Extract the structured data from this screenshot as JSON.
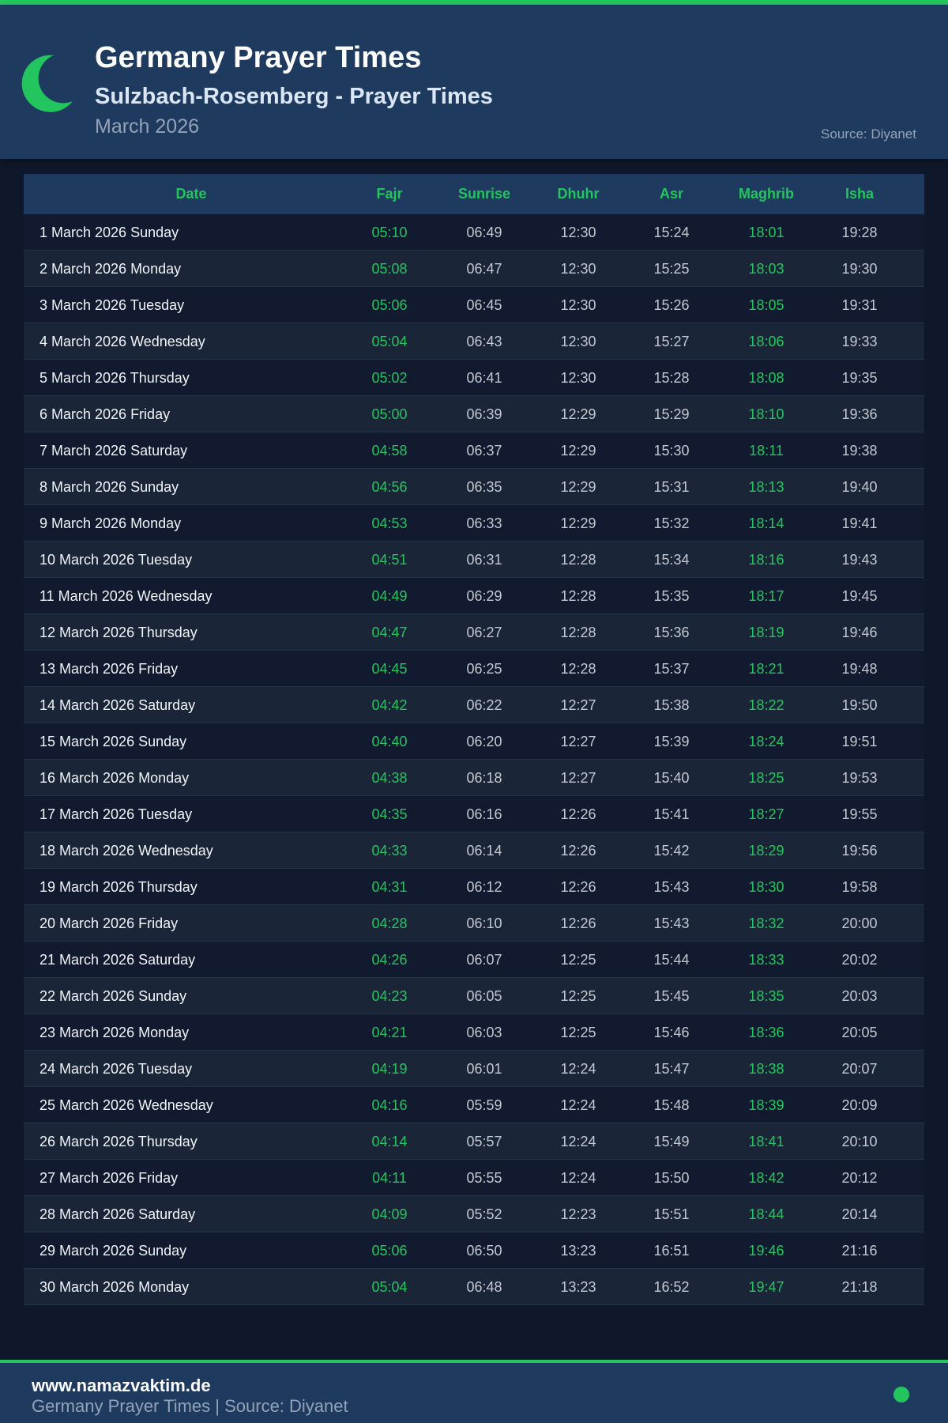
{
  "header": {
    "title": "Germany Prayer Times",
    "subtitle": "Sulzbach-Rosemberg - Prayer Times",
    "month": "March 2026",
    "source": "Source: Diyanet",
    "icon": "crescent-moon-icon"
  },
  "colors": {
    "accent": "#22c55e",
    "header_bg": "#1e3a5f",
    "page_bg": "#0f172a"
  },
  "table": {
    "columns": [
      "Date",
      "Fajr",
      "Sunrise",
      "Dhuhr",
      "Asr",
      "Maghrib",
      "Isha"
    ],
    "rows": [
      [
        "1 March 2026 Sunday",
        "05:10",
        "06:49",
        "12:30",
        "15:24",
        "18:01",
        "19:28"
      ],
      [
        "2 March 2026 Monday",
        "05:08",
        "06:47",
        "12:30",
        "15:25",
        "18:03",
        "19:30"
      ],
      [
        "3 March 2026 Tuesday",
        "05:06",
        "06:45",
        "12:30",
        "15:26",
        "18:05",
        "19:31"
      ],
      [
        "4 March 2026 Wednesday",
        "05:04",
        "06:43",
        "12:30",
        "15:27",
        "18:06",
        "19:33"
      ],
      [
        "5 March 2026 Thursday",
        "05:02",
        "06:41",
        "12:30",
        "15:28",
        "18:08",
        "19:35"
      ],
      [
        "6 March 2026 Friday",
        "05:00",
        "06:39",
        "12:29",
        "15:29",
        "18:10",
        "19:36"
      ],
      [
        "7 March 2026 Saturday",
        "04:58",
        "06:37",
        "12:29",
        "15:30",
        "18:11",
        "19:38"
      ],
      [
        "8 March 2026 Sunday",
        "04:56",
        "06:35",
        "12:29",
        "15:31",
        "18:13",
        "19:40"
      ],
      [
        "9 March 2026 Monday",
        "04:53",
        "06:33",
        "12:29",
        "15:32",
        "18:14",
        "19:41"
      ],
      [
        "10 March 2026 Tuesday",
        "04:51",
        "06:31",
        "12:28",
        "15:34",
        "18:16",
        "19:43"
      ],
      [
        "11 March 2026 Wednesday",
        "04:49",
        "06:29",
        "12:28",
        "15:35",
        "18:17",
        "19:45"
      ],
      [
        "12 March 2026 Thursday",
        "04:47",
        "06:27",
        "12:28",
        "15:36",
        "18:19",
        "19:46"
      ],
      [
        "13 March 2026 Friday",
        "04:45",
        "06:25",
        "12:28",
        "15:37",
        "18:21",
        "19:48"
      ],
      [
        "14 March 2026 Saturday",
        "04:42",
        "06:22",
        "12:27",
        "15:38",
        "18:22",
        "19:50"
      ],
      [
        "15 March 2026 Sunday",
        "04:40",
        "06:20",
        "12:27",
        "15:39",
        "18:24",
        "19:51"
      ],
      [
        "16 March 2026 Monday",
        "04:38",
        "06:18",
        "12:27",
        "15:40",
        "18:25",
        "19:53"
      ],
      [
        "17 March 2026 Tuesday",
        "04:35",
        "06:16",
        "12:26",
        "15:41",
        "18:27",
        "19:55"
      ],
      [
        "18 March 2026 Wednesday",
        "04:33",
        "06:14",
        "12:26",
        "15:42",
        "18:29",
        "19:56"
      ],
      [
        "19 March 2026 Thursday",
        "04:31",
        "06:12",
        "12:26",
        "15:43",
        "18:30",
        "19:58"
      ],
      [
        "20 March 2026 Friday",
        "04:28",
        "06:10",
        "12:26",
        "15:43",
        "18:32",
        "20:00"
      ],
      [
        "21 March 2026 Saturday",
        "04:26",
        "06:07",
        "12:25",
        "15:44",
        "18:33",
        "20:02"
      ],
      [
        "22 March 2026 Sunday",
        "04:23",
        "06:05",
        "12:25",
        "15:45",
        "18:35",
        "20:03"
      ],
      [
        "23 March 2026 Monday",
        "04:21",
        "06:03",
        "12:25",
        "15:46",
        "18:36",
        "20:05"
      ],
      [
        "24 March 2026 Tuesday",
        "04:19",
        "06:01",
        "12:24",
        "15:47",
        "18:38",
        "20:07"
      ],
      [
        "25 March 2026 Wednesday",
        "04:16",
        "05:59",
        "12:24",
        "15:48",
        "18:39",
        "20:09"
      ],
      [
        "26 March 2026 Thursday",
        "04:14",
        "05:57",
        "12:24",
        "15:49",
        "18:41",
        "20:10"
      ],
      [
        "27 March 2026 Friday",
        "04:11",
        "05:55",
        "12:24",
        "15:50",
        "18:42",
        "20:12"
      ],
      [
        "28 March 2026 Saturday",
        "04:09",
        "05:52",
        "12:23",
        "15:51",
        "18:44",
        "20:14"
      ],
      [
        "29 March 2026 Sunday",
        "05:06",
        "06:50",
        "13:23",
        "16:51",
        "19:46",
        "21:16"
      ],
      [
        "30 March 2026 Monday",
        "05:04",
        "06:48",
        "13:23",
        "16:52",
        "19:47",
        "21:18"
      ]
    ]
  },
  "footer": {
    "site": "www.namazvaktim.de",
    "tagline": "Germany Prayer Times | Source: Diyanet"
  }
}
